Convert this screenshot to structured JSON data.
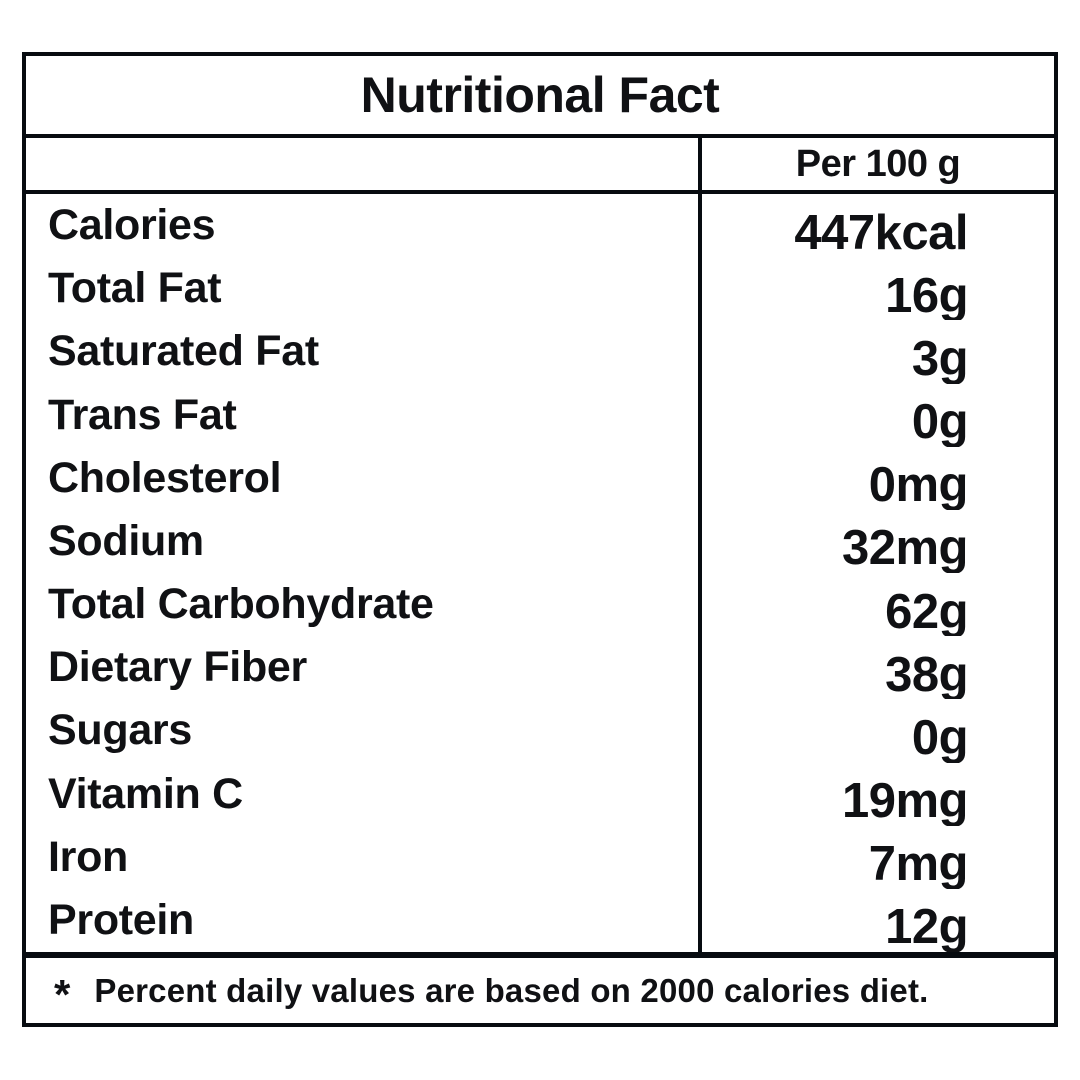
{
  "title": "Nutritional Fact",
  "table": {
    "column_header": "Per 100 g",
    "rows": [
      {
        "label": "Calories",
        "value": "447kcal"
      },
      {
        "label": "Total Fat",
        "value": "16g"
      },
      {
        "label": "Saturated Fat",
        "value": "3g"
      },
      {
        "label": "Trans Fat",
        "value": "0g"
      },
      {
        "label": "Cholesterol",
        "value": "0mg"
      },
      {
        "label": "Sodium",
        "value": "32mg"
      },
      {
        "label": "Total Carbohydrate",
        "value": "62g"
      },
      {
        "label": "Dietary Fiber",
        "value": "38g"
      },
      {
        "label": "Sugars",
        "value": "0g"
      },
      {
        "label": "Vitamin C",
        "value": "19mg"
      },
      {
        "label": "Iron",
        "value": "7mg"
      },
      {
        "label": "Protein",
        "value": "12g"
      }
    ]
  },
  "footnote": {
    "marker": "*",
    "text": "Percent daily values are based on 2000 calories diet."
  },
  "colors": {
    "ink": "#070b10",
    "background": "#ffffff"
  }
}
